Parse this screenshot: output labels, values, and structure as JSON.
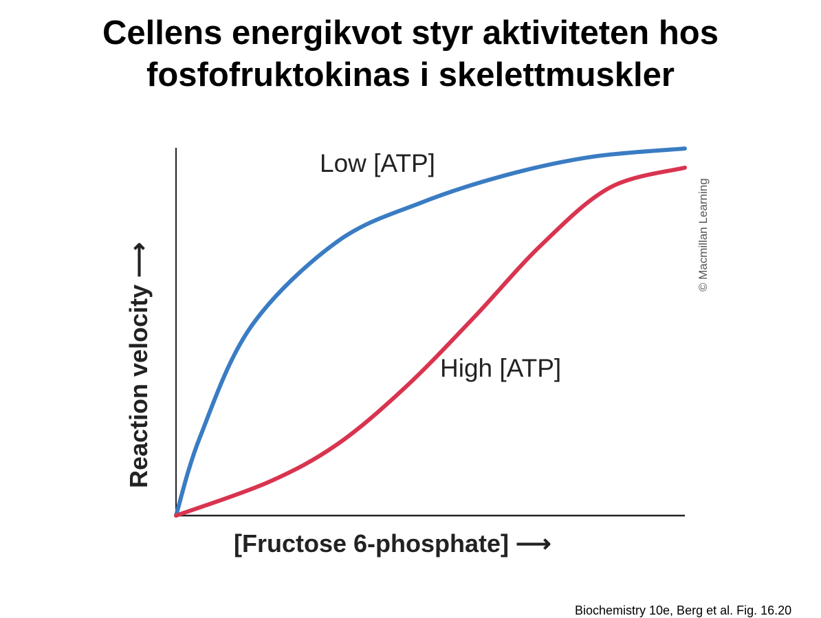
{
  "title_lines": [
    "Cellens energikvot styr aktiviteten hos",
    "fosfofruktokinas i skelettmuskler"
  ],
  "footer": "Biochemistry 10e, Berg et al. Fig. 16.20",
  "chart_data": {
    "type": "line",
    "xlabel": "[Fructose 6-phosphate] ⟶",
    "ylabel": "Reaction velocity ⟶",
    "xlim": [
      0,
      1
    ],
    "ylim": [
      0,
      1
    ],
    "grid": false,
    "ticks": "none",
    "copyright": "© Macmillan Learning",
    "series": [
      {
        "name": "Low [ATP]",
        "color": "#3a7cc3",
        "x": [
          0,
          0.047,
          0.147,
          0.316,
          0.484,
          0.652,
          0.82,
          1
        ],
        "y": [
          0,
          0.213,
          0.513,
          0.744,
          0.852,
          0.927,
          0.976,
          0.998
        ]
      },
      {
        "name": "High [ATP]",
        "color": "#d9344f",
        "x": [
          0,
          0.18,
          0.316,
          0.45,
          0.585,
          0.718,
          0.853,
          1
        ],
        "y": [
          0,
          0.09,
          0.193,
          0.348,
          0.538,
          0.736,
          0.892,
          0.946
        ]
      }
    ]
  }
}
